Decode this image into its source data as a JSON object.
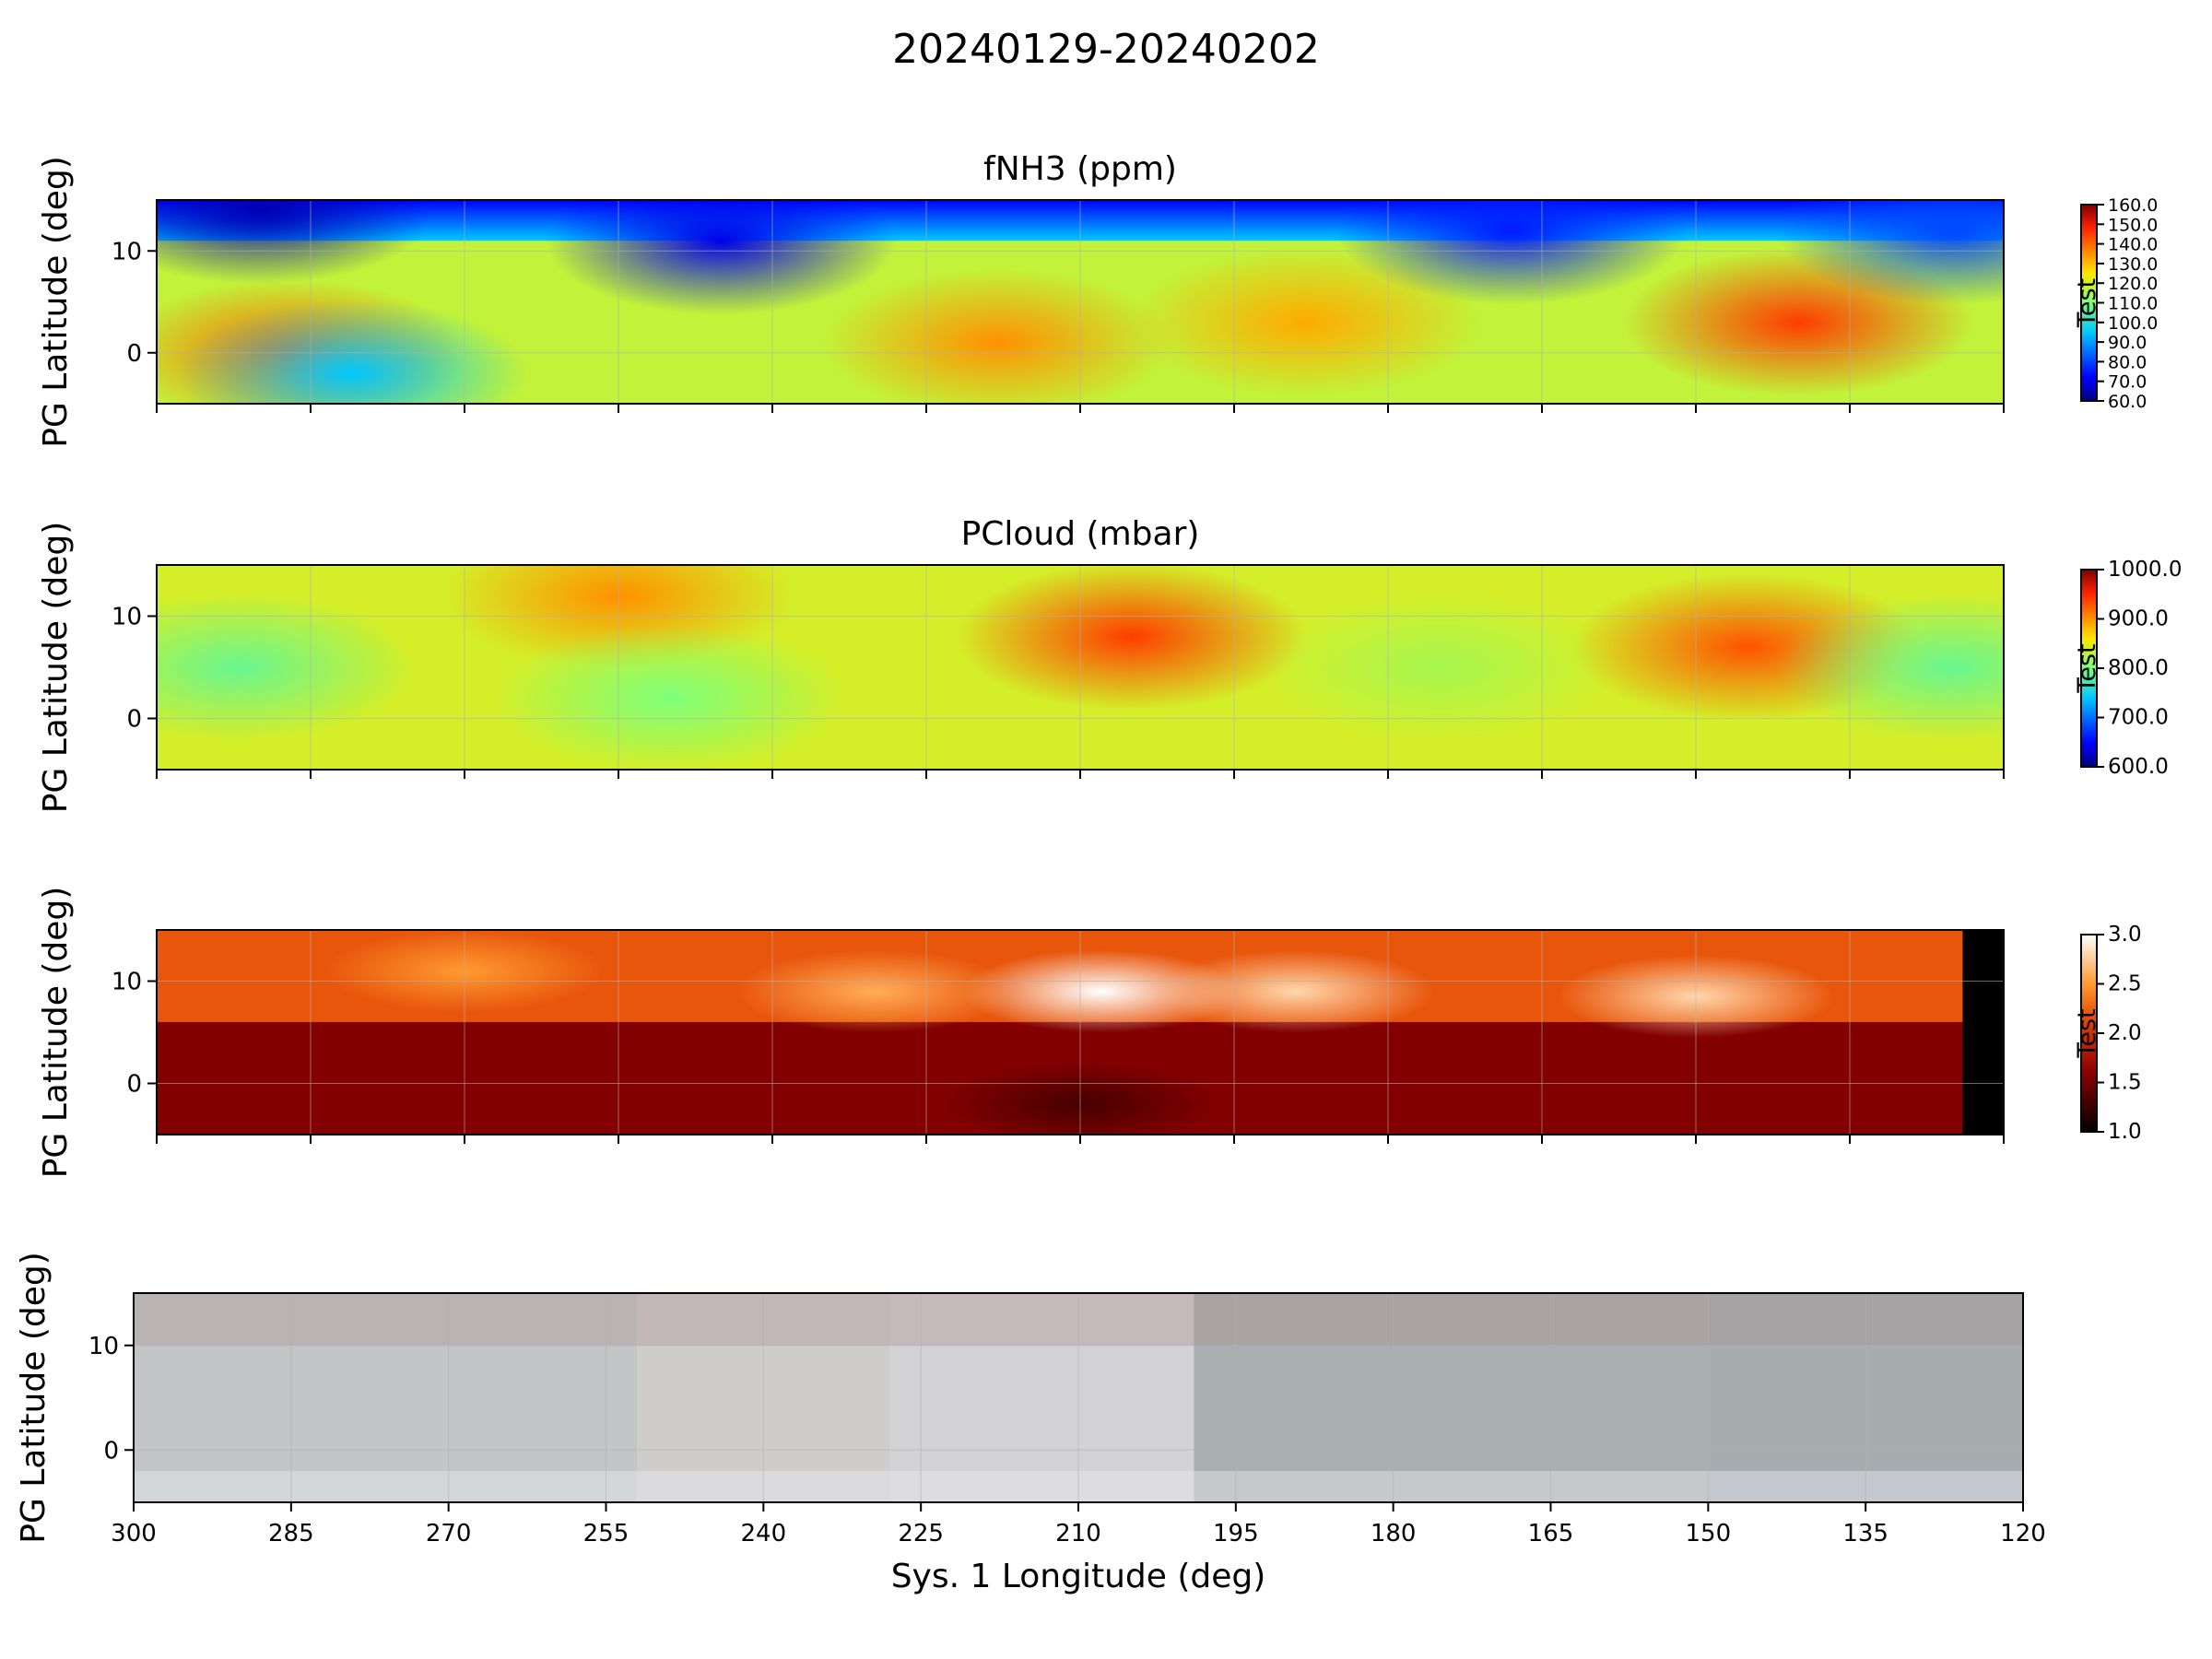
{
  "figure": {
    "title": "20240129-20240202"
  },
  "chart_data": [
    {
      "type": "heatmap",
      "title": "fNH3 (ppm)",
      "xlabel": "",
      "ylabel": "PG Latitude (deg)",
      "xlim": [
        300,
        120
      ],
      "ylim": [
        -5,
        15
      ],
      "yticks": [
        "10",
        "0"
      ],
      "grid": true,
      "colormap": "jet",
      "colorbar": {
        "label": "Test",
        "ticks": [
          "60.0",
          "70.0",
          "80.0",
          "90.0",
          "100.0",
          "110.0",
          "120.0",
          "130.0",
          "140.0",
          "150.0",
          "160.0"
        ],
        "range": [
          60,
          160
        ]
      },
      "features": [
        {
          "lon": 290,
          "lat": 14,
          "value": 65
        },
        {
          "lon": 287,
          "lat": 0,
          "value": 140
        },
        {
          "lon": 281,
          "lat": -2,
          "value": 95
        },
        {
          "lon": 245,
          "lat": 11,
          "value": 70
        },
        {
          "lon": 218,
          "lat": 1,
          "value": 135
        },
        {
          "lon": 188,
          "lat": 3,
          "value": 132
        },
        {
          "lon": 168,
          "lat": 12,
          "value": 75
        },
        {
          "lon": 140,
          "lat": 3,
          "value": 145
        },
        {
          "lon": 125,
          "lat": 12,
          "value": 80
        }
      ]
    },
    {
      "type": "heatmap",
      "title": "PCloud (mbar)",
      "xlabel": "",
      "ylabel": "PG Latitude (deg)",
      "xlim": [
        300,
        120
      ],
      "ylim": [
        -5,
        15
      ],
      "yticks": [
        "10",
        "0"
      ],
      "grid": true,
      "colormap": "jet",
      "colorbar": {
        "label": "Test",
        "ticks": [
          "600.0",
          "700.0",
          "800.0",
          "900.0",
          "1000.0"
        ],
        "range": [
          600,
          1000
        ]
      },
      "features": [
        {
          "lon": 292,
          "lat": 5,
          "value": 790
        },
        {
          "lon": 255,
          "lat": 12,
          "value": 900
        },
        {
          "lon": 250,
          "lat": 2,
          "value": 800
        },
        {
          "lon": 205,
          "lat": 8,
          "value": 940
        },
        {
          "lon": 175,
          "lat": 5,
          "value": 820
        },
        {
          "lon": 145,
          "lat": 7,
          "value": 930
        },
        {
          "lon": 125,
          "lat": 5,
          "value": 790
        }
      ]
    },
    {
      "type": "heatmap",
      "title": "",
      "xlabel": "",
      "ylabel": "PG Latitude (deg)",
      "xlim": [
        300,
        120
      ],
      "ylim": [
        -5,
        15
      ],
      "yticks": [
        "10",
        "0"
      ],
      "grid": true,
      "colormap": "gist_heat",
      "colorbar": {
        "label": "Test",
        "ticks": [
          "1.0",
          "1.5",
          "2.0",
          "2.5",
          "3.0"
        ],
        "range": [
          1,
          3
        ]
      },
      "features": [
        {
          "lon": 208,
          "lat": 9,
          "value": 3.0
        },
        {
          "lon": 189,
          "lat": 9,
          "value": 2.8
        },
        {
          "lon": 150,
          "lat": 8.5,
          "value": 2.8
        },
        {
          "lon": 230,
          "lat": 9,
          "value": 2.6
        },
        {
          "lon": 270,
          "lat": 11,
          "value": 2.5
        },
        {
          "lon": 210,
          "lat": -2,
          "value": 1.3
        }
      ]
    },
    {
      "type": "heatmap",
      "title": "",
      "xlabel": "Sys. 1 Longitude (deg)",
      "ylabel": "PG Latitude (deg)",
      "xlim": [
        300,
        120
      ],
      "ylim": [
        -5,
        15
      ],
      "xticks": [
        "300",
        "285",
        "270",
        "255",
        "240",
        "225",
        "210",
        "195",
        "180",
        "165",
        "150",
        "135",
        "120"
      ],
      "yticks": [
        "10",
        "0"
      ],
      "grid": true,
      "colormap": "rgb-composite",
      "segments": [
        {
          "from": 300,
          "to": 252,
          "tone": "#c3c6c6"
        },
        {
          "from": 252,
          "to": 228,
          "tone": "#cfcccc"
        },
        {
          "from": 228,
          "to": 199,
          "tone": "#d3d2d5"
        },
        {
          "from": 199,
          "to": 150,
          "tone": "#a9aeb0"
        },
        {
          "from": 150,
          "to": 120,
          "tone": "#a7acaf"
        }
      ]
    }
  ]
}
